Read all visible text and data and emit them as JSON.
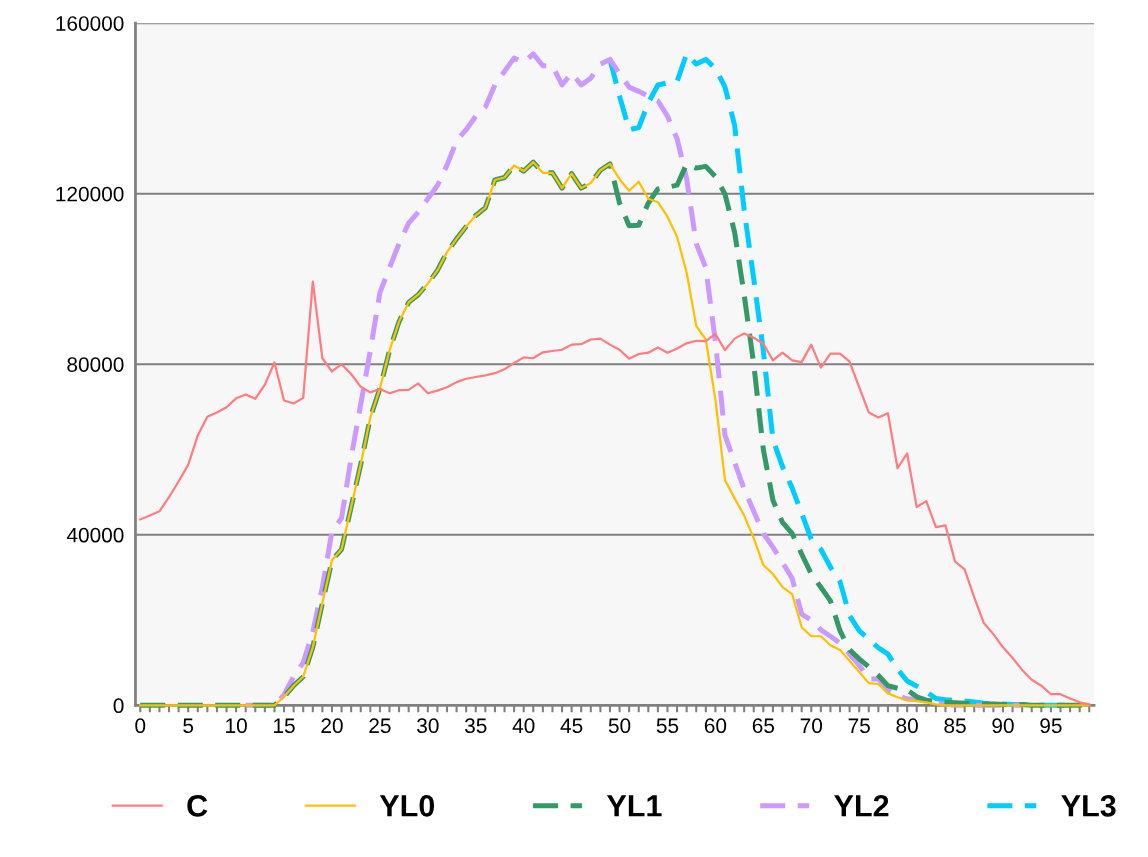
{
  "chart_data": {
    "type": "line",
    "categories": [
      "0",
      null,
      null,
      null,
      null,
      "5",
      null,
      null,
      null,
      null,
      "10",
      null,
      null,
      null,
      null,
      "15",
      null,
      null,
      null,
      null,
      "20",
      null,
      null,
      null,
      null,
      "25",
      null,
      null,
      null,
      null,
      "30",
      null,
      null,
      null,
      null,
      "35",
      null,
      null,
      null,
      null,
      "40",
      null,
      null,
      null,
      null,
      "45",
      null,
      null,
      null,
      null,
      "50",
      null,
      null,
      null,
      null,
      "55",
      null,
      null,
      null,
      null,
      "60",
      null,
      null,
      null,
      null,
      "65",
      null,
      null,
      null,
      null,
      "70",
      null,
      null,
      null,
      null,
      "75",
      null,
      null,
      null,
      null,
      "80",
      null,
      null,
      null,
      null,
      "85",
      null,
      null,
      null,
      null,
      "90",
      null,
      null,
      null,
      null,
      "95",
      null,
      null,
      null,
      null
    ],
    "series": [
      {
        "name": "C",
        "color": "#ff7c80",
        "line_style": "solid",
        "values": [
          43600,
          44500,
          45500,
          48800,
          52500,
          56400,
          63300,
          67700,
          68700,
          69900,
          72000,
          72900,
          71900,
          75200,
          80400,
          71500,
          70800,
          72100,
          99400,
          81400,
          78300,
          80000,
          77700,
          74700,
          73400,
          74200,
          73200,
          73900,
          74000,
          75500,
          73200,
          73800,
          74600,
          75800,
          76600,
          77000,
          77400,
          77900,
          78800,
          80300,
          81600,
          81400,
          82800,
          83100,
          83400,
          84600,
          84700,
          85800,
          86000,
          84600,
          83400,
          81300,
          82400,
          82700,
          83900,
          82700,
          83700,
          84900,
          85500,
          85400,
          87100,
          83300,
          86000,
          87200,
          86200,
          84800,
          80900,
          82700,
          80900,
          80500,
          84600,
          79200,
          82500,
          82500,
          80600,
          74600,
          68700,
          67500,
          68500,
          55600,
          59100,
          46500,
          47900,
          41800,
          42200,
          33700,
          31900,
          25300,
          19300,
          16700,
          13600,
          11100,
          8300,
          6000,
          4600,
          2600,
          2600,
          1600,
          700,
          200
        ]
      },
      {
        "name": "YL0",
        "color": "#ffc000",
        "line_style": "solid",
        "values": [
          0,
          0,
          0,
          0,
          0,
          0,
          0,
          0,
          0,
          0,
          0,
          0,
          0,
          0,
          0,
          2000,
          4600,
          6700,
          13600,
          24000,
          34000,
          36600,
          46500,
          56500,
          67500,
          74300,
          83200,
          90000,
          94500,
          96300,
          98900,
          102000,
          106300,
          109400,
          112300,
          114900,
          116700,
          123200,
          123800,
          126600,
          125300,
          127400,
          124900,
          124900,
          121300,
          124700,
          121300,
          122500,
          125500,
          127000,
          123400,
          120700,
          122800,
          118800,
          118000,
          114600,
          109900,
          101500,
          89000,
          85800,
          71700,
          52800,
          48600,
          44500,
          39200,
          32900,
          30800,
          27700,
          26100,
          18300,
          16200,
          16200,
          14100,
          13000,
          10400,
          7800,
          5200,
          5000,
          2800,
          1900,
          1200,
          1000,
          700,
          200,
          0,
          0,
          0,
          0,
          0,
          0,
          0,
          0,
          0,
          0,
          0,
          0,
          0,
          0,
          0,
          0
        ]
      },
      {
        "name": "YL1",
        "color": "#339966",
        "line_style": "dashed",
        "values": [
          0,
          0,
          0,
          0,
          0,
          0,
          0,
          0,
          0,
          0,
          0,
          0,
          0,
          0,
          0,
          2000,
          4600,
          6700,
          13600,
          24000,
          34000,
          36600,
          46500,
          56500,
          67500,
          74300,
          83200,
          90000,
          94500,
          96300,
          98900,
          102000,
          106300,
          109400,
          112300,
          114900,
          116700,
          123200,
          123800,
          126600,
          125300,
          127400,
          124900,
          124900,
          121300,
          124700,
          121300,
          122500,
          125500,
          127000,
          117800,
          112500,
          112600,
          117800,
          121100,
          121500,
          122000,
          127000,
          126000,
          126400,
          124000,
          119900,
          111000,
          96300,
          80000,
          60000,
          48100,
          42900,
          40300,
          35500,
          30800,
          27700,
          24500,
          17500,
          13000,
          10900,
          9000,
          7000,
          4600,
          4000,
          3600,
          2000,
          1200,
          900,
          700,
          600,
          500,
          400,
          300,
          300,
          200,
          200,
          200,
          0,
          0,
          0,
          0,
          0,
          0,
          0
        ]
      },
      {
        "name": "YL2",
        "color": "#cc99ff",
        "line_style": "dashed",
        "values": [
          null,
          null,
          null,
          null,
          null,
          null,
          null,
          null,
          null,
          null,
          null,
          0,
          0,
          0,
          0,
          2500,
          6700,
          10000,
          17200,
          27700,
          40800,
          43900,
          58100,
          70600,
          83200,
          96800,
          102600,
          108300,
          113100,
          115700,
          118800,
          121900,
          126700,
          132400,
          135000,
          138200,
          140300,
          145500,
          148700,
          151800,
          150800,
          152800,
          150000,
          150000,
          145500,
          148300,
          145500,
          147100,
          150400,
          151500,
          148100,
          145000,
          144000,
          142900,
          141800,
          138200,
          132900,
          123500,
          108300,
          102600,
          85300,
          63300,
          57000,
          50700,
          45500,
          40300,
          37100,
          33500,
          29800,
          21400,
          20000,
          17700,
          16200,
          14600,
          12000,
          9400,
          6200,
          6200,
          3600,
          2300,
          1500,
          1500,
          1000,
          500,
          300,
          0,
          0,
          0,
          0,
          0,
          0,
          0,
          0,
          null,
          null,
          null,
          null,
          null,
          null,
          null
        ]
      },
      {
        "name": "YL3",
        "color": "#00ccff",
        "line_style": "dashed",
        "values": [
          null,
          null,
          null,
          null,
          null,
          null,
          null,
          null,
          null,
          null,
          null,
          null,
          null,
          null,
          null,
          null,
          null,
          null,
          null,
          null,
          null,
          null,
          null,
          null,
          null,
          null,
          null,
          null,
          null,
          null,
          null,
          null,
          null,
          null,
          null,
          null,
          null,
          null,
          null,
          null,
          null,
          null,
          null,
          null,
          null,
          null,
          null,
          null,
          null,
          151500,
          142900,
          135000,
          135500,
          141300,
          145500,
          146000,
          146300,
          152800,
          150400,
          151500,
          149400,
          145000,
          136100,
          116200,
          100000,
          83200,
          62300,
          56000,
          51000,
          45000,
          39000,
          36600,
          32400,
          29000,
          21000,
          17500,
          15500,
          13500,
          12000,
          8500,
          5700,
          4500,
          3200,
          1600,
          1300,
          1100,
          1000,
          800,
          500,
          400,
          300,
          200,
          200,
          0,
          0,
          0,
          0,
          0,
          null,
          null
        ]
      }
    ],
    "ylim": [
      0,
      160000
    ],
    "yticks": [
      0,
      40000,
      80000,
      120000,
      160000
    ],
    "grid": "y",
    "legend": "bottom",
    "marker": "none"
  }
}
